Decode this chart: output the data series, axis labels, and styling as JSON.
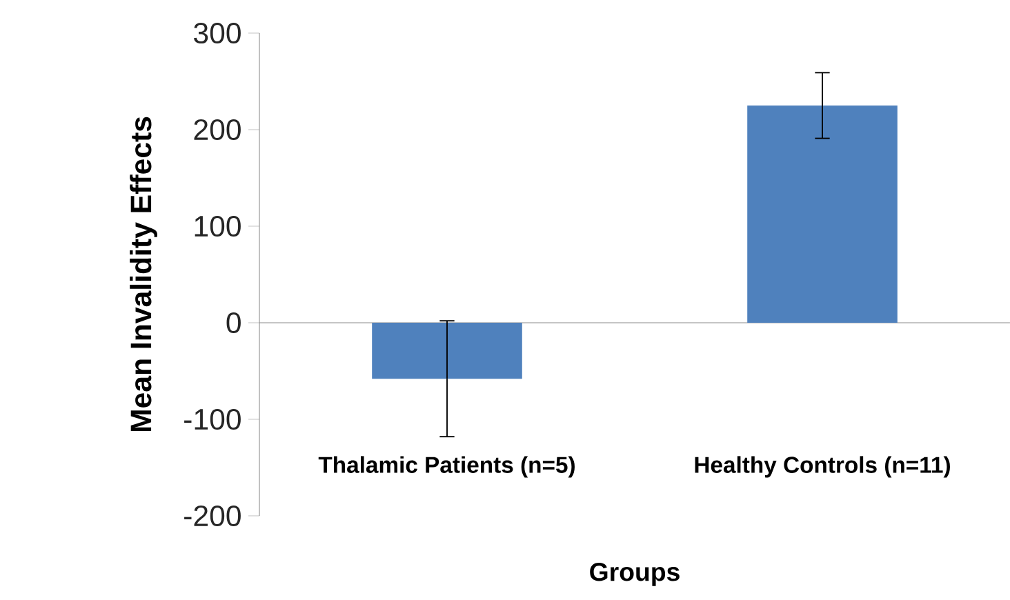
{
  "chart_data": {
    "type": "bar",
    "xlabel": "Groups",
    "ylabel": "Mean Invalidity Effects",
    "categories": [
      "Thalamic Patients (n=5)",
      "Healthy Controls (n=11)"
    ],
    "values": [
      -58,
      225
    ],
    "errors": [
      60,
      34
    ],
    "color": "#4f81bd",
    "ylim": [
      -200,
      300
    ],
    "yticks": [
      -200,
      -100,
      0,
      100,
      200,
      300
    ]
  }
}
